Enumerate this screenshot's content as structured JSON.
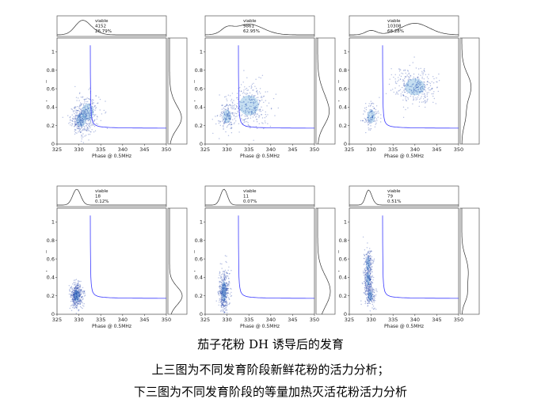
{
  "header_text": "",
  "figure": {
    "x_axis_label": "Phase @ 0.5MHz",
    "y_axis_label": "Amplitude @ 0.5MHz",
    "x_ticks": [
      "325",
      "330",
      "335",
      "340",
      "345",
      "350"
    ],
    "y_ticks": [
      "0",
      "0.2",
      "0.4",
      "0.6",
      "0.8",
      "1"
    ],
    "line_color": "#3a3aff",
    "density_color": "#1f3fa8"
  },
  "chart_data": [
    {
      "type": "scatter",
      "panel": "top-left",
      "xlim": [
        325,
        350
      ],
      "ylim": [
        0,
        1.15
      ],
      "stat_label": "viable",
      "count": "4152",
      "percent": "26.79%",
      "clusters": [
        {
          "x": 330.5,
          "y": 0.26,
          "sx": 1.2,
          "sy": 0.08,
          "n": 300
        },
        {
          "x": 332,
          "y": 0.35,
          "sx": 1.5,
          "sy": 0.1,
          "n": 200
        }
      ]
    },
    {
      "type": "scatter",
      "panel": "top-middle",
      "xlim": [
        325,
        350
      ],
      "ylim": [
        0,
        1.15
      ],
      "stat_label": "viable",
      "count": "9861",
      "percent": "62.95%",
      "clusters": [
        {
          "x": 330,
          "y": 0.3,
          "sx": 1.0,
          "sy": 0.08,
          "n": 150
        },
        {
          "x": 335,
          "y": 0.42,
          "sx": 2.5,
          "sy": 0.12,
          "n": 300
        }
      ]
    },
    {
      "type": "scatter",
      "panel": "top-right",
      "xlim": [
        325,
        350
      ],
      "ylim": [
        0,
        1.15
      ],
      "stat_label": "viable",
      "count": "10308",
      "percent": "68.28%",
      "clusters": [
        {
          "x": 330,
          "y": 0.3,
          "sx": 1.0,
          "sy": 0.08,
          "n": 120
        },
        {
          "x": 340,
          "y": 0.62,
          "sx": 2.5,
          "sy": 0.1,
          "n": 320
        }
      ]
    },
    {
      "type": "scatter",
      "panel": "bottom-left",
      "xlim": [
        325,
        350
      ],
      "ylim": [
        0,
        1.15
      ],
      "stat_label": "viable",
      "count": "18",
      "percent": "0.12%",
      "clusters": [
        {
          "x": 329.5,
          "y": 0.2,
          "sx": 0.7,
          "sy": 0.07,
          "n": 450
        }
      ]
    },
    {
      "type": "scatter",
      "panel": "bottom-middle",
      "xlim": [
        325,
        350
      ],
      "ylim": [
        0,
        1.15
      ],
      "stat_label": "viable",
      "count": "11",
      "percent": "0.07%",
      "clusters": [
        {
          "x": 329.3,
          "y": 0.25,
          "sx": 0.6,
          "sy": 0.12,
          "n": 450
        }
      ]
    },
    {
      "type": "scatter",
      "panel": "bottom-right",
      "xlim": [
        325,
        350
      ],
      "ylim": [
        0,
        1.15
      ],
      "stat_label": "viable",
      "count": "79",
      "percent": "0.51%",
      "clusters": [
        {
          "x": 329.3,
          "y": 0.55,
          "sx": 0.5,
          "sy": 0.08,
          "n": 180
        },
        {
          "x": 329.3,
          "y": 0.38,
          "sx": 0.5,
          "sy": 0.08,
          "n": 200
        },
        {
          "x": 329.8,
          "y": 0.2,
          "sx": 0.6,
          "sy": 0.06,
          "n": 180
        }
      ]
    }
  ],
  "captions": {
    "line1": "茄子花粉 DH 诱导后的发育",
    "line2": "上三图为不同发育阶段新鲜花粉的活力分析；",
    "line3": "下三图为不同发育阶段的等量加热灭活花粉活力分析"
  }
}
